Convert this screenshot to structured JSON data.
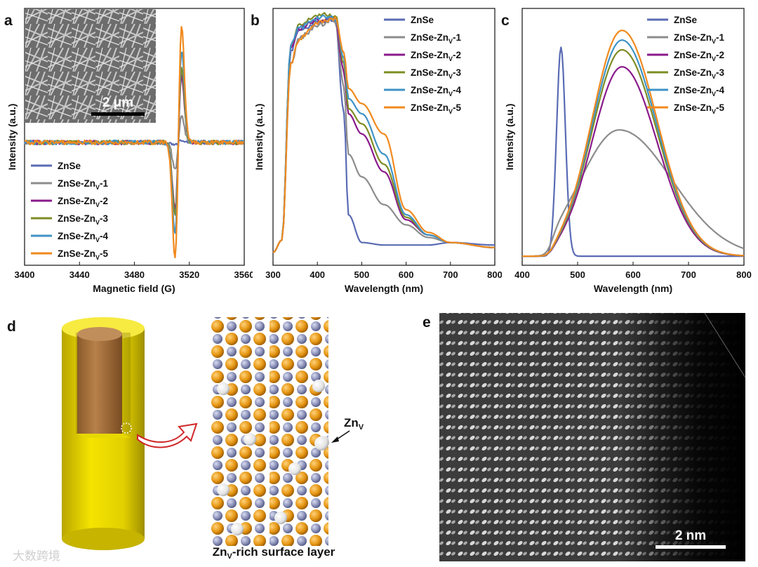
{
  "colors": {
    "ZnSe": "#5a6bb4",
    "ZnSe-Znv-1": "#8c8c8c",
    "ZnSe-Znv-2": "#8a1a8c",
    "ZnSe-Znv-3": "#7f8c24",
    "ZnSe-Znv-4": "#3f93c6",
    "ZnSe-Znv-5": "#f08a1e"
  },
  "panels": {
    "a": "a",
    "b": "b",
    "c": "c",
    "d": "d",
    "e": "e"
  },
  "chart_data": [
    {
      "id": "a",
      "type": "line",
      "xlabel": "Magnetic field (G)",
      "ylabel": "Intensity (a.u.)",
      "xlim": [
        3400,
        3560
      ],
      "xticks": [
        "3400",
        "3440",
        "3480",
        "3520",
        "3560"
      ],
      "inset_scale_label": "2 μm",
      "legend": [
        "ZnSe",
        "ZnSe-ZnV-1",
        "ZnSe-ZnV-2",
        "ZnSe-ZnV-3",
        "ZnSe-ZnV-4",
        "ZnSe-ZnV-5"
      ],
      "peak_center_G": 3512,
      "peak_amplitude_rel": [
        0.02,
        0.22,
        0.55,
        0.6,
        0.75,
        0.95
      ]
    },
    {
      "id": "b",
      "type": "line",
      "xlabel": "Wavelength (nm)",
      "ylabel": "Intensity (a.u.)",
      "xlim": [
        300,
        800
      ],
      "xticks": [
        "300",
        "400",
        "500",
        "600",
        "700",
        "800"
      ],
      "legend": [
        "ZnSe",
        "ZnSe-ZnV-1",
        "ZnSe-ZnV-2",
        "ZnSe-ZnV-3",
        "ZnSe-ZnV-4",
        "ZnSe-ZnV-5"
      ],
      "x": [
        300,
        320,
        340,
        360,
        400,
        440,
        460,
        470,
        500,
        550,
        600,
        650,
        700,
        800
      ],
      "series": [
        {
          "name": "ZnSe",
          "values": [
            0.05,
            0.1,
            0.85,
            0.93,
            0.96,
            0.97,
            0.6,
            0.2,
            0.09,
            0.08,
            0.08,
            0.08,
            0.09,
            0.08
          ]
        },
        {
          "name": "ZnSe-ZnV-1",
          "values": [
            0.05,
            0.1,
            0.8,
            0.9,
            0.95,
            0.97,
            0.7,
            0.44,
            0.35,
            0.24,
            0.16,
            0.11,
            0.09,
            0.07
          ]
        },
        {
          "name": "ZnSe-ZnV-2",
          "values": [
            0.05,
            0.1,
            0.86,
            0.94,
            0.97,
            0.98,
            0.76,
            0.6,
            0.52,
            0.37,
            0.18,
            0.12,
            0.09,
            0.07
          ]
        },
        {
          "name": "ZnSe-ZnV-3",
          "values": [
            0.05,
            0.1,
            0.87,
            0.95,
            0.99,
            0.99,
            0.8,
            0.62,
            0.56,
            0.4,
            0.19,
            0.12,
            0.09,
            0.07
          ]
        },
        {
          "name": "ZnSe-ZnV-4",
          "values": [
            0.05,
            0.1,
            0.87,
            0.94,
            0.98,
            0.98,
            0.82,
            0.66,
            0.6,
            0.44,
            0.2,
            0.12,
            0.09,
            0.07
          ]
        },
        {
          "name": "ZnSe-ZnV-5",
          "values": [
            0.05,
            0.1,
            0.8,
            0.9,
            0.96,
            0.98,
            0.84,
            0.7,
            0.64,
            0.52,
            0.22,
            0.13,
            0.09,
            0.07
          ]
        }
      ]
    },
    {
      "id": "c",
      "type": "line",
      "xlabel": "Wavelength (nm)",
      "ylabel": "Intensity (a.u.)",
      "xlim": [
        400,
        800
      ],
      "xticks": [
        "400",
        "500",
        "600",
        "700",
        "800"
      ],
      "legend": [
        "ZnSe",
        "ZnSe-ZnV-1",
        "ZnSe-ZnV-2",
        "ZnSe-ZnV-3",
        "ZnSe-ZnV-4",
        "ZnSe-ZnV-5"
      ],
      "series": [
        {
          "name": "ZnSe",
          "peak_nm": 470,
          "width_nm": 8,
          "height": 0.86
        },
        {
          "name": "ZnSe-ZnV-1",
          "peak_nm": 575,
          "width_nm": 95,
          "height": 0.52
        },
        {
          "name": "ZnSe-ZnV-2",
          "peak_nm": 580,
          "width_nm": 60,
          "height": 0.78
        },
        {
          "name": "ZnSe-ZnV-3",
          "peak_nm": 580,
          "width_nm": 60,
          "height": 0.85
        },
        {
          "name": "ZnSe-ZnV-4",
          "peak_nm": 580,
          "width_nm": 60,
          "height": 0.89
        },
        {
          "name": "ZnSe-ZnV-5",
          "peak_nm": 580,
          "width_nm": 60,
          "height": 0.93
        }
      ]
    }
  ],
  "panel_d": {
    "label": "d",
    "znv_label": "Zn",
    "znv_sub": "V",
    "caption_prefix": "Zn",
    "caption_sub": "V",
    "caption_suffix": "-rich surface layer"
  },
  "panel_e": {
    "label": "e",
    "scale_label": "2 nm"
  },
  "watermark": "大数跨境"
}
